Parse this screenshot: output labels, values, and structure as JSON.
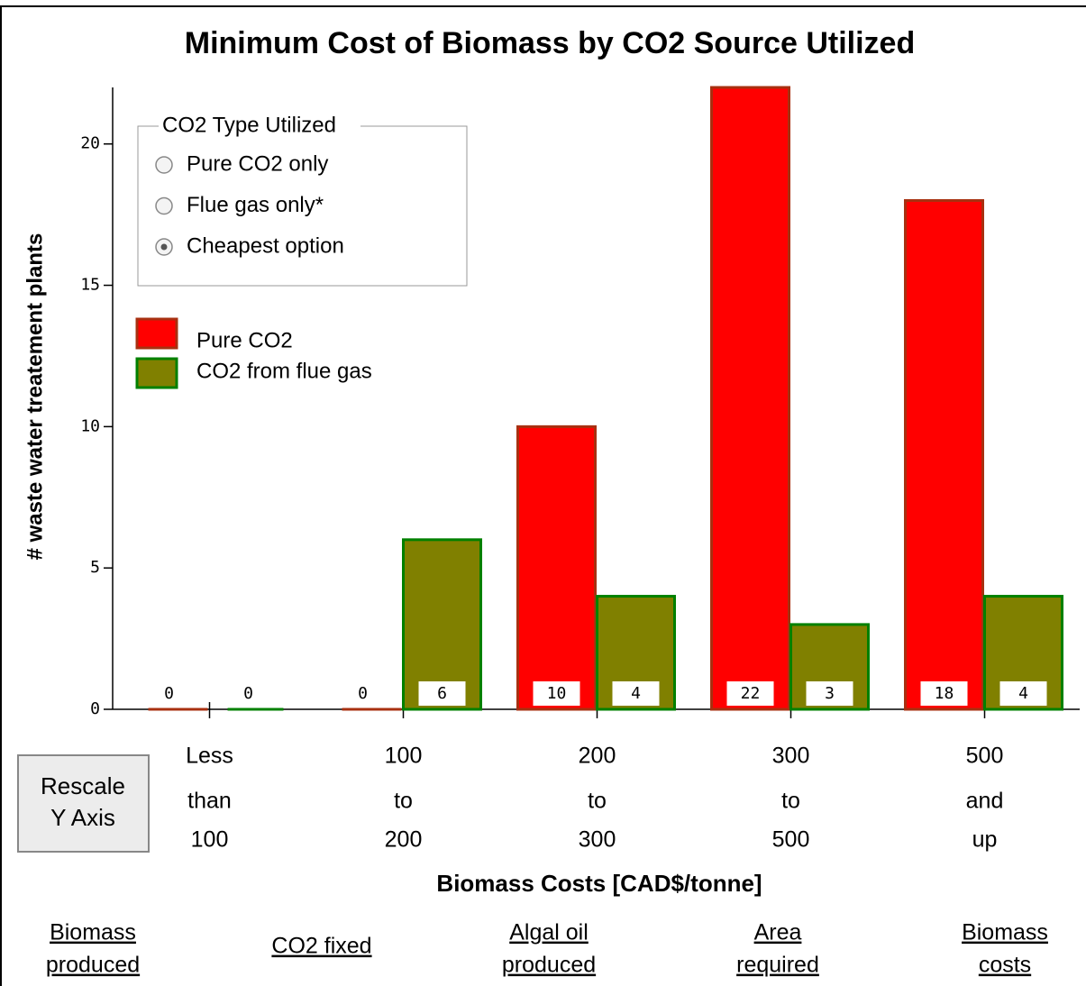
{
  "chart_data": {
    "type": "bar",
    "title": "Minimum Cost of Biomass by CO2 Source Utilized",
    "x_label": "Biomass Costs [CAD$/tonne]",
    "y_label": "# waste water treatement plants",
    "categories": [
      [
        "Less",
        "than",
        "100"
      ],
      [
        "100",
        "to",
        "200"
      ],
      [
        "200",
        "to",
        "300"
      ],
      [
        "300",
        "to",
        "500"
      ],
      [
        "500",
        "and",
        "up"
      ]
    ],
    "series": [
      {
        "name": "Pure CO2",
        "color": "#ff0000",
        "edge_color": "#a83010",
        "values": [
          0,
          0,
          10,
          22,
          18
        ]
      },
      {
        "name": "CO2 from flue gas",
        "color": "#808000",
        "edge_color": "#008000",
        "values": [
          0,
          6,
          4,
          3,
          4
        ]
      }
    ],
    "ylim": [
      0,
      22
    ],
    "yticks": [
      0,
      5,
      10,
      15,
      20
    ]
  },
  "controls": {
    "radio_group": {
      "legend": "CO2 Type Utilized",
      "options": [
        "Pure CO2 only",
        "Flue gas only*",
        "Cheapest option"
      ],
      "selected": 2
    },
    "button": [
      "Rescale",
      "Y Axis"
    ],
    "links": [
      [
        "Biomass",
        "produced"
      ],
      [
        "CO2 fixed"
      ],
      [
        "Algal oil",
        "produced"
      ],
      [
        "Area",
        "required"
      ],
      [
        "Biomass",
        "costs"
      ]
    ]
  }
}
